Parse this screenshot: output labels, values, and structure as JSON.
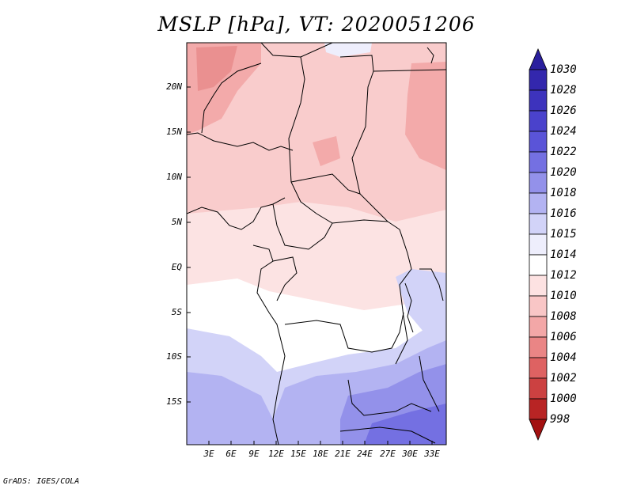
{
  "title": "MSLP [hPa], VT: 2020051206",
  "credit": "GrADS: IGES/COLA",
  "map": {
    "variable": "MSLP",
    "units": "hPa",
    "valid_time": "2020051206",
    "lat_labels": [
      "20N",
      "15N",
      "10N",
      "5N",
      "EQ",
      "5S",
      "10S",
      "15S"
    ],
    "lon_labels": [
      "3E",
      "6E",
      "9E",
      "12E",
      "15E",
      "18E",
      "21E",
      "24E",
      "27E",
      "30E",
      "33E"
    ]
  },
  "colorbar": {
    "levels": [
      "1030",
      "1028",
      "1026",
      "1024",
      "1022",
      "1020",
      "1018",
      "1016",
      "1015",
      "1014",
      "1012",
      "1010",
      "1008",
      "1006",
      "1004",
      "1002",
      "1000",
      "998"
    ],
    "colors": [
      "#2a1f9e",
      "#3327ad",
      "#3d33bd",
      "#4a42cc",
      "#5a54d8",
      "#7470e2",
      "#9391ea",
      "#b3b3f2",
      "#d2d3f8",
      "#eeeefc",
      "#ffffff",
      "#fde2e2",
      "#f9c6c6",
      "#f3a7a7",
      "#ea8585",
      "#de6262",
      "#cc4141",
      "#b82424",
      "#a31111"
    ]
  }
}
